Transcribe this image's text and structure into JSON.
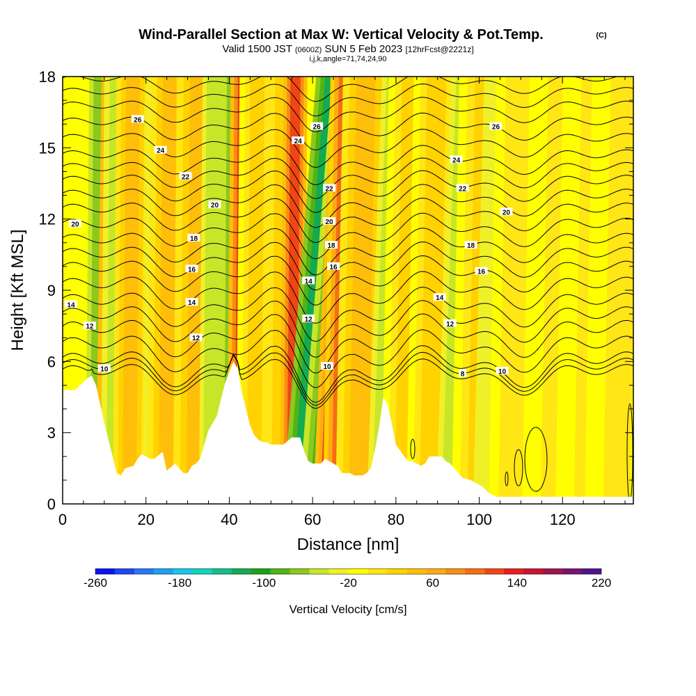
{
  "chart_data": {
    "type": "heatmap",
    "title": "Wind-Parallel Section at Max W: Vertical Velocity & Pot.Temp.",
    "title_mark": "(C)",
    "subtitle_main": "Valid 1500 JST",
    "subtitle_utc": "(0600Z)",
    "subtitle_date": "SUN 5 Feb 2023",
    "subtitle_fcst": "[12hrFcst@2221z]",
    "subtitle_line2": "i,j,k,angle=71,74,24,90",
    "xlabel": "Distance [nm]",
    "ylabel": "Height [Kft MSL]",
    "xlim": [
      0,
      137
    ],
    "ylim": [
      0,
      18
    ],
    "x_ticks": [
      "0",
      "20",
      "40",
      "60",
      "80",
      "100",
      "120"
    ],
    "x_tick_values": [
      0,
      20,
      40,
      60,
      80,
      100,
      120
    ],
    "y_ticks": [
      "0",
      "3",
      "6",
      "9",
      "12",
      "15",
      "18"
    ],
    "y_tick_values": [
      0,
      3,
      6,
      9,
      12,
      15,
      18
    ],
    "colorbar": {
      "label": "Vertical Velocity [cm/s]",
      "min": -260,
      "max": 220,
      "step": 20,
      "tick_labels": [
        "-260",
        "-180",
        "-100",
        "-20",
        "60",
        "140",
        "220"
      ],
      "tick_values": [
        -260,
        -180,
        -100,
        -20,
        60,
        140,
        220
      ],
      "colors": [
        "#0a14f0",
        "#1e46f5",
        "#2878f5",
        "#1ea0f0",
        "#14c8e6",
        "#14d2be",
        "#14be8c",
        "#14aa50",
        "#1ea01e",
        "#50b414",
        "#8cc81e",
        "#c8e628",
        "#f0f028",
        "#ffff00",
        "#ffe614",
        "#ffd200",
        "#ffbe0a",
        "#ffaa14",
        "#fa8c14",
        "#f56e14",
        "#f04614",
        "#e61e1e",
        "#c81432",
        "#a01450",
        "#78146e",
        "#50148c"
      ]
    },
    "contour_labels": [
      {
        "text": "26",
        "x": 18,
        "y": 16.2
      },
      {
        "text": "24",
        "x": 23.5,
        "y": 14.9
      },
      {
        "text": "22",
        "x": 29.5,
        "y": 13.8
      },
      {
        "text": "20",
        "x": 36.5,
        "y": 12.6
      },
      {
        "text": "18",
        "x": 31.5,
        "y": 11.2
      },
      {
        "text": "16",
        "x": 31,
        "y": 9.9
      },
      {
        "text": "14",
        "x": 31,
        "y": 8.5
      },
      {
        "text": "12",
        "x": 32,
        "y": 7.0
      },
      {
        "text": "20",
        "x": 3,
        "y": 11.8
      },
      {
        "text": "14",
        "x": 2,
        "y": 8.4
      },
      {
        "text": "12",
        "x": 6.5,
        "y": 7.5
      },
      {
        "text": "10",
        "x": 10,
        "y": 5.7
      },
      {
        "text": "26",
        "x": 61,
        "y": 15.9
      },
      {
        "text": "24",
        "x": 56.5,
        "y": 15.3
      },
      {
        "text": "22",
        "x": 64,
        "y": 13.3
      },
      {
        "text": "20",
        "x": 64,
        "y": 11.9
      },
      {
        "text": "18",
        "x": 64.5,
        "y": 10.9
      },
      {
        "text": "16",
        "x": 65,
        "y": 10.0
      },
      {
        "text": "14",
        "x": 59,
        "y": 9.4
      },
      {
        "text": "12",
        "x": 59,
        "y": 7.8
      },
      {
        "text": "10",
        "x": 63.5,
        "y": 5.8
      },
      {
        "text": "26",
        "x": 104,
        "y": 15.9
      },
      {
        "text": "24",
        "x": 94.5,
        "y": 14.5
      },
      {
        "text": "22",
        "x": 96,
        "y": 13.3
      },
      {
        "text": "20",
        "x": 106.5,
        "y": 12.3
      },
      {
        "text": "18",
        "x": 98,
        "y": 10.9
      },
      {
        "text": "16",
        "x": 100.5,
        "y": 9.8
      },
      {
        "text": "14",
        "x": 90.5,
        "y": 8.7
      },
      {
        "text": "12",
        "x": 93,
        "y": 7.6
      },
      {
        "text": "10",
        "x": 105.5,
        "y": 5.6
      },
      {
        "text": "8",
        "x": 96,
        "y": 5.5
      }
    ],
    "terrain": [
      [
        0,
        4.8
      ],
      [
        3,
        4.8
      ],
      [
        6,
        5.3
      ],
      [
        7,
        5.4
      ],
      [
        8,
        5.0
      ],
      [
        9,
        4.2
      ],
      [
        10,
        3.4
      ],
      [
        11,
        2.7
      ],
      [
        12,
        2.0
      ],
      [
        13,
        1.3
      ],
      [
        14,
        1.2
      ],
      [
        15,
        1.5
      ],
      [
        17,
        1.6
      ],
      [
        18,
        1.9
      ],
      [
        19,
        2.1
      ],
      [
        20,
        2.0
      ],
      [
        21,
        1.9
      ],
      [
        22,
        1.9
      ],
      [
        24,
        2.2
      ],
      [
        25,
        1.4
      ],
      [
        27,
        1.7
      ],
      [
        29,
        1.3
      ],
      [
        30,
        1.3
      ],
      [
        31,
        1.6
      ],
      [
        32,
        1.7
      ],
      [
        33,
        1.9
      ],
      [
        34,
        2.5
      ],
      [
        35,
        3.1
      ],
      [
        37,
        3.7
      ],
      [
        38,
        4.4
      ],
      [
        39,
        5.1
      ],
      [
        41,
        6.0
      ],
      [
        42,
        5.7
      ],
      [
        43,
        4.7
      ],
      [
        44,
        4.0
      ],
      [
        45,
        3.3
      ],
      [
        46,
        2.9
      ],
      [
        47,
        2.7
      ],
      [
        48,
        2.6
      ],
      [
        49,
        2.6
      ],
      [
        50,
        2.5
      ],
      [
        51,
        2.5
      ],
      [
        53,
        2.5
      ],
      [
        55,
        2.8
      ],
      [
        57,
        2.8
      ],
      [
        58,
        2.2
      ],
      [
        59,
        1.8
      ],
      [
        60,
        1.7
      ],
      [
        61,
        1.7
      ],
      [
        62,
        1.7
      ],
      [
        63,
        1.9
      ],
      [
        64,
        1.8
      ],
      [
        66,
        1.6
      ],
      [
        67,
        1.3
      ],
      [
        69,
        1.3
      ],
      [
        70,
        1.2
      ],
      [
        72,
        1.2
      ],
      [
        73,
        1.3
      ],
      [
        74,
        1.5
      ],
      [
        75,
        2.3
      ],
      [
        76,
        3.3
      ],
      [
        77,
        4.5
      ],
      [
        78,
        4.2
      ],
      [
        79,
        3.4
      ],
      [
        80,
        2.5
      ],
      [
        82,
        2.0
      ],
      [
        83,
        1.8
      ],
      [
        84,
        1.8
      ],
      [
        86,
        1.6
      ],
      [
        87,
        1.7
      ],
      [
        88,
        2.0
      ],
      [
        91,
        2.0
      ],
      [
        92,
        1.8
      ],
      [
        93,
        1.7
      ],
      [
        94,
        1.5
      ],
      [
        95,
        1.3
      ],
      [
        96,
        1.1
      ],
      [
        98,
        1.0
      ],
      [
        99,
        0.9
      ],
      [
        100,
        0.8
      ],
      [
        101,
        0.7
      ],
      [
        102,
        0.5
      ],
      [
        103,
        0.4
      ],
      [
        104,
        0.3
      ],
      [
        137,
        0.3
      ]
    ],
    "isentropes": [
      {
        "label": "8",
        "base": 5.35,
        "amp": 1.0
      },
      {
        "label": "10",
        "base": 5.8,
        "amp": 1.15
      },
      {
        "label": "12",
        "base": 7.1,
        "amp": 1.2
      },
      {
        "label": "14",
        "base": 8.3,
        "amp": 1.1
      },
      {
        "label": "16",
        "base": 9.7,
        "amp": 1.0
      },
      {
        "label": "18",
        "base": 10.9,
        "amp": 0.95
      },
      {
        "label": "20",
        "base": 12.2,
        "amp": 0.9
      },
      {
        "label": "22",
        "base": 13.4,
        "amp": 0.85
      },
      {
        "label": "24",
        "base": 14.5,
        "amp": 0.8
      },
      {
        "label": "26",
        "base": 15.9,
        "amp": 0.75
      }
    ],
    "velocity_bands": [
      {
        "x": 9.0,
        "w": -60,
        "width": 1.6,
        "tilt": 0.05
      },
      {
        "x": 11.0,
        "w": 140,
        "width": 1.4,
        "tilt": 0.08
      },
      {
        "x": 13.5,
        "w": -40,
        "width": 2.0,
        "tilt": 0.05
      },
      {
        "x": 16.0,
        "w": 70,
        "width": 1.8,
        "tilt": 0.05
      },
      {
        "x": 22.5,
        "w": -20,
        "width": 1.5,
        "tilt": 0.06
      },
      {
        "x": 25.0,
        "w": 70,
        "width": 2.2,
        "tilt": 0.06
      },
      {
        "x": 32.0,
        "w": 60,
        "width": 2.5,
        "tilt": 0.05
      },
      {
        "x": 36.0,
        "w": -30,
        "width": 1.5,
        "tilt": 0.05
      },
      {
        "x": 40.0,
        "w": -50,
        "width": 1.4,
        "tilt": 0.04
      },
      {
        "x": 42.5,
        "w": 150,
        "width": 1.4,
        "tilt": 0.05
      },
      {
        "x": 46.0,
        "w": 40,
        "width": 2.0,
        "tilt": 0.05
      },
      {
        "x": 52.0,
        "w": 50,
        "width": 2.0,
        "tilt": 0.05
      },
      {
        "x": 55.0,
        "w": 150,
        "width": 1.3,
        "tilt": 0.05
      },
      {
        "x": 56.5,
        "w": -110,
        "width": 1.7,
        "tilt": 0.45
      },
      {
        "x": 61.0,
        "w": -80,
        "width": 2.0,
        "tilt": 0.45
      },
      {
        "x": 63.0,
        "w": 140,
        "width": 1.3,
        "tilt": 0.25
      },
      {
        "x": 66.0,
        "w": 120,
        "width": 1.6,
        "tilt": 0.1
      },
      {
        "x": 71.0,
        "w": 60,
        "width": 2.5,
        "tilt": 0.1
      },
      {
        "x": 77.0,
        "w": -30,
        "width": 1.8,
        "tilt": 0.2
      },
      {
        "x": 82.0,
        "w": 40,
        "width": 2.5,
        "tilt": 0.1
      },
      {
        "x": 88.0,
        "w": 40,
        "width": 2.5,
        "tilt": 0.1
      },
      {
        "x": 94.0,
        "w": -40,
        "width": 2.0,
        "tilt": 0.2
      },
      {
        "x": 100.0,
        "w": 40,
        "width": 3.0,
        "tilt": 0.1
      },
      {
        "x": 104.0,
        "w": -20,
        "width": 2.5,
        "tilt": 0.15
      },
      {
        "x": 110.0,
        "w": 30,
        "width": 3.5,
        "tilt": 0.1
      },
      {
        "x": 118.0,
        "w": 20,
        "width": 3.5,
        "tilt": 0.1
      },
      {
        "x": 126.0,
        "w": 25,
        "width": 3.5,
        "tilt": 0.1
      },
      {
        "x": 133.0,
        "w": 20,
        "width": 3.5,
        "tilt": 0.1
      }
    ]
  }
}
